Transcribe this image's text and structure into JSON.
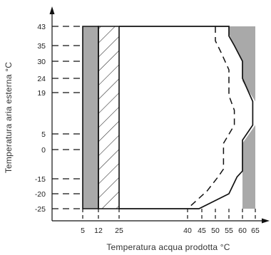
{
  "chart_data": {
    "type": "area",
    "xlabel": "Temperatura acqua prodotta °C",
    "ylabel": "Temperatura aria esterna °C",
    "x_ticks": [
      5,
      12,
      25,
      40,
      45,
      50,
      55,
      60,
      65
    ],
    "y_ticks": [
      -25,
      -20,
      -15,
      0,
      5,
      19,
      24,
      30,
      35,
      43
    ],
    "xlim": [
      0,
      67
    ],
    "ylim": [
      -27,
      46
    ],
    "grid": false,
    "regions": [
      {
        "name": "",
        "fill": "gray",
        "points": [
          [
            5,
            -25
          ],
          [
            12,
            -25
          ],
          [
            12,
            43
          ],
          [
            5,
            43
          ]
        ]
      },
      {
        "name": "",
        "fill": "hatched",
        "points": [
          [
            12,
            -25
          ],
          [
            25,
            -25
          ],
          [
            25,
            43
          ],
          [
            12,
            43
          ]
        ]
      },
      {
        "name": "",
        "fill": "gray",
        "points": [
          [
            55,
            43
          ],
          [
            65,
            43
          ],
          [
            65,
            -25
          ],
          [
            60,
            -25
          ],
          [
            60,
            2
          ],
          [
            65,
            8
          ],
          [
            65,
            16
          ],
          [
            60,
            23
          ],
          [
            60,
            30
          ],
          [
            57,
            35
          ],
          [
            55,
            40
          ]
        ]
      }
    ],
    "boundary_solid": [
      [
        25,
        43
      ],
      [
        55,
        43
      ],
      [
        55,
        39
      ],
      [
        57,
        35
      ],
      [
        60,
        30
      ],
      [
        60,
        24
      ],
      [
        64,
        16
      ],
      [
        64,
        8
      ],
      [
        60,
        3
      ],
      [
        60,
        -11
      ],
      [
        58,
        -14
      ],
      [
        55,
        -20
      ],
      [
        44,
        -25
      ],
      [
        25,
        -25
      ]
    ],
    "boundary_dashed": [
      [
        50,
        43
      ],
      [
        50,
        37
      ],
      [
        52,
        33
      ],
      [
        55,
        27
      ],
      [
        55,
        18
      ],
      [
        57,
        13
      ],
      [
        57,
        8
      ],
      [
        53,
        2
      ],
      [
        53,
        -10
      ],
      [
        51,
        -14
      ],
      [
        47,
        -19
      ],
      [
        40,
        -25
      ]
    ]
  }
}
